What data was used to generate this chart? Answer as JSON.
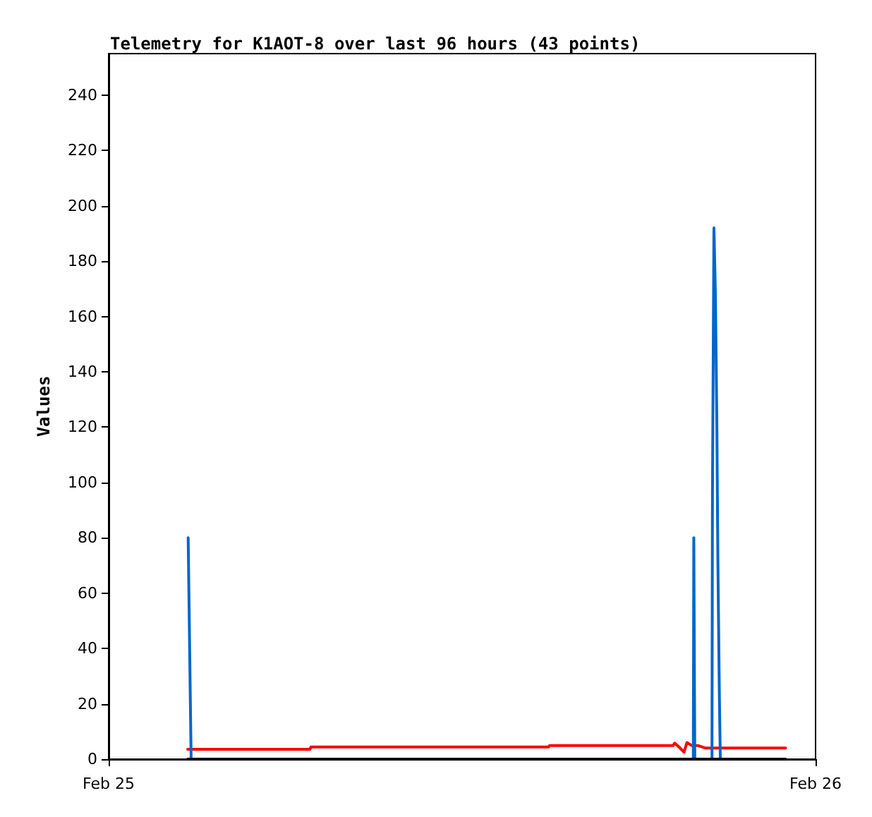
{
  "chart_data": {
    "type": "line",
    "title": "Telemetry for K1AOT-8 over last 96 hours (43 points)",
    "ylabel": "Values",
    "xlim": [
      "--02-25",
      "--02-26"
    ],
    "xticks": [
      {
        "value": "--02-25",
        "label": "Feb 25"
      },
      {
        "value": "--02-26",
        "label": "Feb 26"
      }
    ],
    "ylim": [
      0,
      255
    ],
    "yticks": [
      0,
      20,
      40,
      60,
      80,
      100,
      120,
      140,
      160,
      180,
      200,
      220,
      240
    ],
    "grid": false,
    "marker": "none",
    "line_style": "solid",
    "series": [
      {
        "color": "#ff0000",
        "x": [
          "--02-25T02:41",
          "--02-25T06:50",
          "--02-25T06:52",
          "--02-25T14:56",
          "--02-25T14:58",
          "--02-25T19:10",
          "--02-25T19:13",
          "--02-25T19:24",
          "--02-25T19:32",
          "--02-25T19:38",
          "--02-25T19:47",
          "--02-25T20:01",
          "--02-25T20:16",
          "--02-25T22:59"
        ],
        "values": [
          3.6,
          3.6,
          4.4,
          4.4,
          4.9,
          4.9,
          5.8,
          4,
          2.5,
          6,
          5,
          4.9,
          4,
          4
        ]
      },
      {
        "color": "#0066cc",
        "x": [
          "--02-25T02:42",
          "--02-25T02:45",
          "--02-25T02:48",
          "--02-25T19:51",
          "--02-25T19:52",
          "--02-25T19:54",
          "--02-25T20:29",
          "--02-25T20:30",
          "--02-25T20:33",
          "--02-25T20:36",
          "--02-25T20:39",
          "--02-25T20:41",
          "--02-25T20:44",
          "--02-25T20:46"
        ],
        "values": [
          80,
          40,
          0,
          0,
          80,
          0,
          0,
          96,
          192,
          168,
          120,
          72,
          24,
          0
        ]
      },
      {
        "color": "#000000",
        "x": [
          "--02-25T02:41",
          "--02-25T22:59"
        ],
        "values": [
          0,
          0
        ]
      }
    ]
  }
}
